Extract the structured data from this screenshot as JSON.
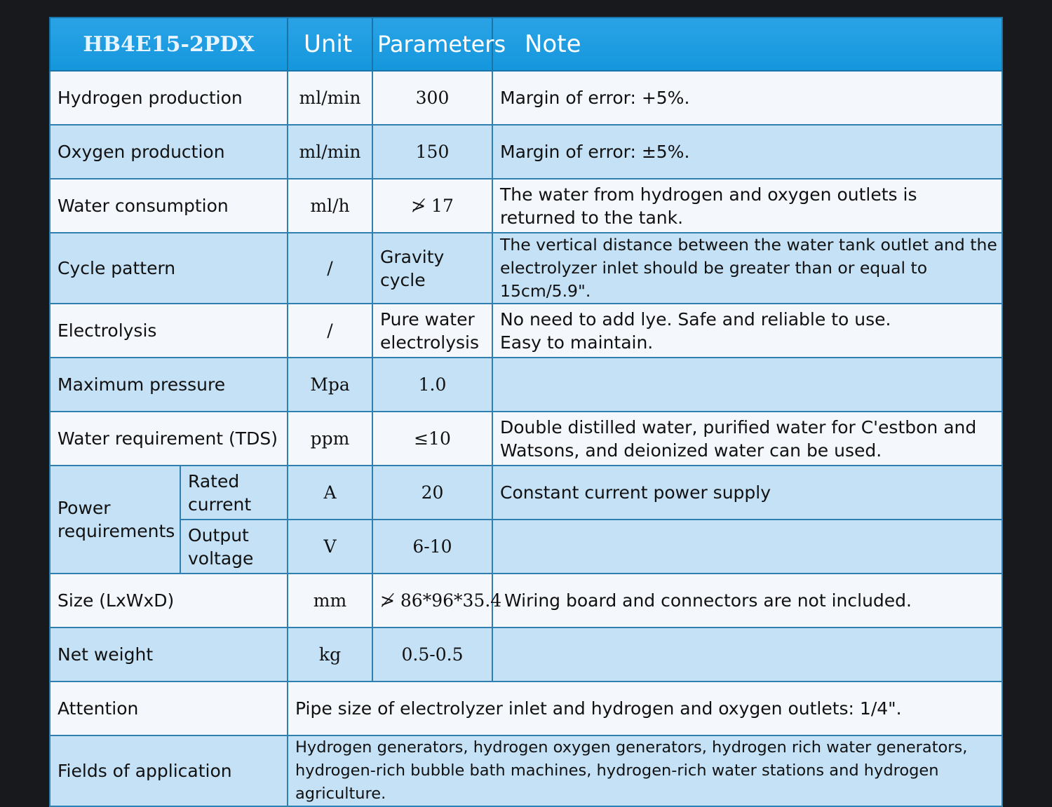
{
  "header": {
    "model": "HB4E15-2PDX",
    "unit": "Unit",
    "parameters": "Parameters",
    "note": "Note"
  },
  "rows": [
    {
      "item": "Hydrogen production",
      "unit": "ml/min",
      "param": "300",
      "note": "Margin of error: +5%."
    },
    {
      "item": "Oxygen production",
      "unit": "ml/min",
      "param": "150",
      "note": "Margin of error: ±5%."
    },
    {
      "item": "Water consumption",
      "unit": "ml/h",
      "param": "≯ 17",
      "note": [
        "The water from hydrogen and oxygen outlets is",
        "returned to the tank."
      ]
    },
    {
      "item": "Cycle pattern",
      "unit": "/",
      "param": "Gravity cycle",
      "note": [
        "The vertical distance between the water tank outlet and the",
        "electrolyzer inlet should be greater than or equal to 15cm/5.9\"."
      ]
    },
    {
      "item": "Electrolysis",
      "unit": "/",
      "param": [
        "Pure water",
        "electrolysis"
      ],
      "note": [
        "No need to add lye. Safe and reliable to use.",
        "Easy to maintain."
      ]
    },
    {
      "item": "Maximum pressure",
      "unit": "Mpa",
      "param": "1.0",
      "note": ""
    },
    {
      "item": "Water requirement (TDS)",
      "unit": "ppm",
      "param": "≤10",
      "note": [
        "Double distilled water, purified water for C'estbon and",
        "Watsons, and deionized water can be used."
      ]
    },
    {
      "item": "Size (LxWxD)",
      "unit": "mm",
      "param": "≯ 86*96*35.4",
      "note": "Wiring board and connectors are not included."
    },
    {
      "item": "Net weight",
      "unit": "kg",
      "param": "0.5-0.5",
      "note": ""
    }
  ],
  "power": {
    "label": [
      "Power",
      "requirements"
    ],
    "rated": {
      "sub": [
        "Rated",
        "current"
      ],
      "unit": "A",
      "param": "20",
      "note": "Constant current power supply"
    },
    "voltage": {
      "sub": [
        "Output",
        "voltage"
      ],
      "unit": "V",
      "param": "6-10",
      "note": ""
    }
  },
  "attention": {
    "label": "Attention",
    "text": "Pipe size of electrolyzer inlet and hydrogen and oxygen outlets: 1/4\"."
  },
  "fields": {
    "label": "Fields of application",
    "text": [
      "Hydrogen generators, hydrogen oxygen generators, hydrogen rich water generators,",
      "hydrogen-rich bubble bath machines, hydrogen-rich water stations and hydrogen agriculture."
    ]
  }
}
